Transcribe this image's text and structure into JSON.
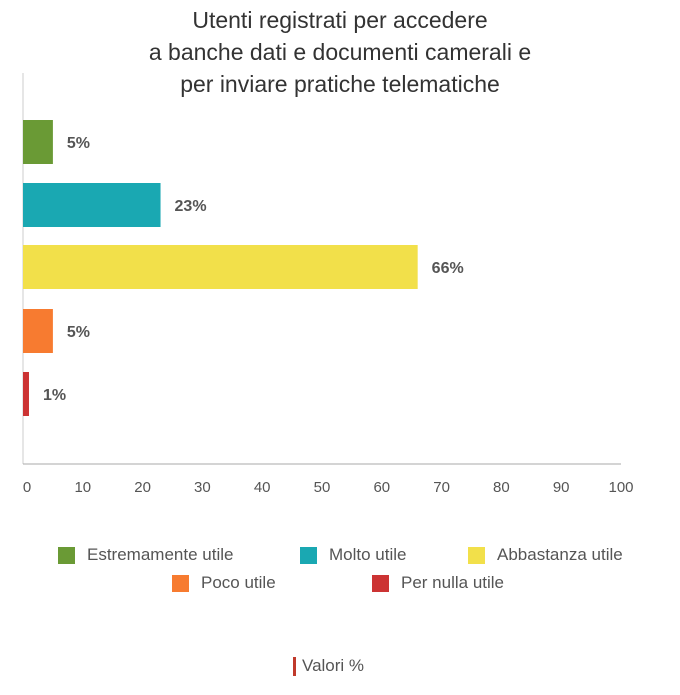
{
  "chart_data": {
    "type": "bar",
    "orientation": "horizontal",
    "title_lines": [
      "Utenti registrati per accedere",
      "a banche dati e documenti camerali e",
      "per inviare pratiche telematiche"
    ],
    "categories": [
      "Estremamente utile",
      "Molto utile",
      "Abbastanza utile",
      "Poco utile",
      "Per nulla utile"
    ],
    "values": [
      5,
      23,
      66,
      5,
      1
    ],
    "data_labels": [
      "5%",
      "23%",
      "66%",
      "5%",
      "1%"
    ],
    "colors": [
      "#6a9a35",
      "#1aa8b2",
      "#f2e04a",
      "#f77b30",
      "#cc3333"
    ],
    "xlim": [
      0,
      100
    ],
    "x_ticks": [
      "0",
      "10",
      "20",
      "30",
      "40",
      "50",
      "60",
      "70",
      "80",
      "90",
      "100"
    ],
    "grid": false,
    "legend_position": "bottom",
    "footnote": "Valori %"
  }
}
